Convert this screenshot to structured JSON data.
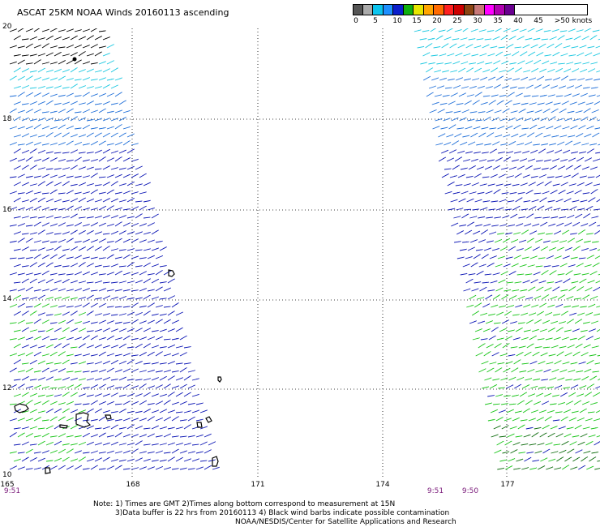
{
  "title": "ASCAT 25KM NOAA Winds 20160113 ascending",
  "legend": {
    "colors": [
      "#555555",
      "#aaaaaa",
      "#0cc4ee",
      "#1e90ff",
      "#0b1fcc",
      "#0fb00f",
      "#e6e600",
      "#ffa500",
      "#ff6a00",
      "#ff2020",
      "#cc0000",
      "#8b4513",
      "#c87878",
      "#ff00ff",
      "#b000b0",
      "#6a0090"
    ],
    "labels": [
      "0",
      "5",
      "10",
      "15",
      "20",
      "25",
      "30",
      "35",
      "40",
      "45",
      ">50 knots"
    ]
  },
  "map": {
    "lat_labels": [
      "20",
      "18",
      "16",
      "14",
      "12",
      "10"
    ],
    "lon_labels": [
      "165",
      "168",
      "171",
      "174",
      "177"
    ],
    "times": [
      "9:51",
      "9:51",
      "9:50"
    ],
    "wind_colors": {
      "black": "#000000",
      "cyan": "#17c7e0",
      "blue": "#1e6ed8",
      "darkblue": "#0a14b4",
      "green": "#16c416",
      "darkgreen": "#0a6a0a"
    }
  },
  "notes": [
    "Note: 1) Times are GMT 2)Times along bottom correspond to measurement at 15N",
    "3)Data buffer is 22 hrs from 20160113 4) Black wind barbs indicate possible contamination",
    "NOAA/NESDIS/Center for Satellite Applications and Research"
  ]
}
